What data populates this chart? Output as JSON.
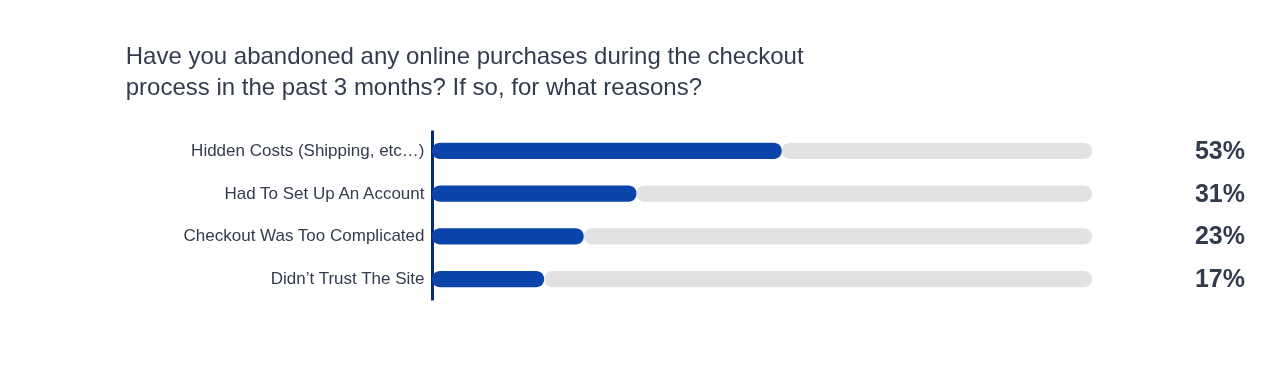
{
  "chart_data": {
    "type": "bar",
    "orientation": "horizontal",
    "title": "Have you abandoned any online purchases during the checkout process in the past 3 months? If so, for what reasons?",
    "categories": [
      "Hidden Costs (Shipping, etc…)",
      "Had To Set Up An Account",
      "Checkout Was Too Complicated",
      "Didn’t Trust The Site"
    ],
    "series": [
      {
        "color": "#0b44ab",
        "values": [
          53,
          31,
          23,
          17
        ],
        "value_labels": [
          "53%",
          "31%",
          "23%",
          "17%"
        ]
      },
      {
        "color": "#e2e2e2",
        "values": [
          47,
          69,
          77,
          83
        ]
      }
    ],
    "stacked": true,
    "xlim": [
      0,
      100
    ],
    "tick_labels": "y",
    "grid": false
  }
}
